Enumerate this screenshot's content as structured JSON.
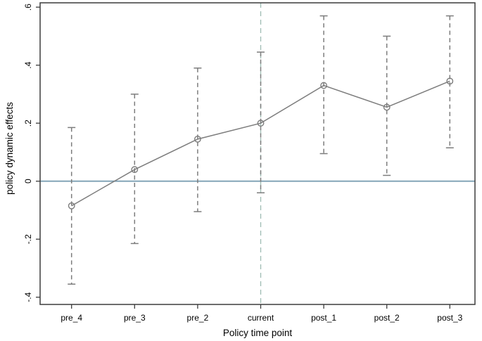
{
  "chart_data": {
    "type": "line",
    "title": "",
    "xlabel": "Policy time point",
    "ylabel": "policy dynamic effects",
    "categories": [
      "pre_4",
      "pre_3",
      "pre_2",
      "current",
      "post_1",
      "post_2",
      "post_3"
    ],
    "series": [
      {
        "name": "policy dynamic effects",
        "values": [
          -0.085,
          0.04,
          0.145,
          0.2,
          0.33,
          0.255,
          0.345
        ],
        "ci_low": [
          -0.355,
          -0.215,
          -0.105,
          -0.04,
          0.095,
          0.02,
          0.115
        ],
        "ci_high": [
          0.185,
          0.3,
          0.39,
          0.445,
          0.57,
          0.5,
          0.57
        ]
      }
    ],
    "ylim": [
      -0.425,
      0.615
    ],
    "yticks": [
      {
        "v": 0.6,
        "label": ".6"
      },
      {
        "v": 0.4,
        "label": ".4"
      },
      {
        "v": 0.2,
        "label": ".2"
      },
      {
        "v": 0,
        "label": "0"
      },
      {
        "v": -0.2,
        "label": "-.2"
      },
      {
        "v": -0.4,
        "label": "-.4"
      }
    ],
    "zero_line": {
      "v": 0,
      "color": "#7c9fb3"
    },
    "reference_vline": {
      "category": "current",
      "color": "#a3bfb7"
    },
    "grid": false,
    "legend": "none",
    "error_bar_style": "dashed-with-caps",
    "marker": "open-circle",
    "colors": {
      "series": "#7d7d7d",
      "box": "#3c3c3c",
      "text": "#000000",
      "background": "#ffffff"
    }
  }
}
